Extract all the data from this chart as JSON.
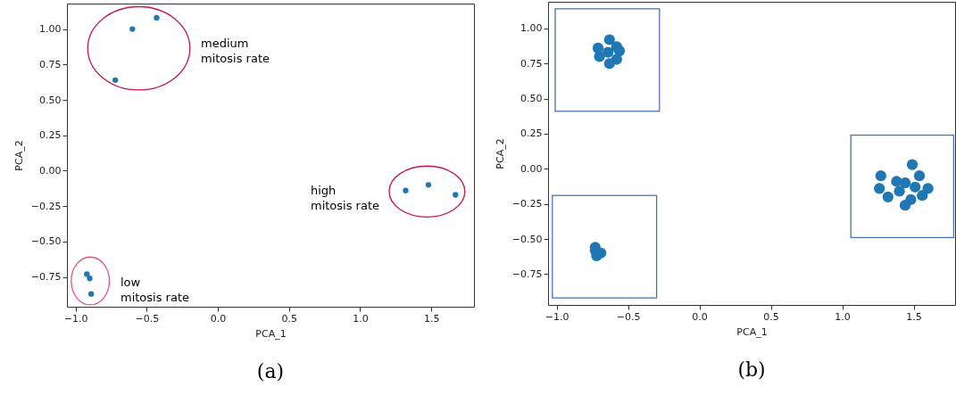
{
  "chart_data": [
    {
      "type": "scatter",
      "xlabel": "PCA_1",
      "ylabel": "PCA_2",
      "xlim": [
        -1.06,
        1.8
      ],
      "ylim": [
        -0.96,
        1.18
      ],
      "xticks": [
        {
          "value": -1,
          "label": "−1.0"
        },
        {
          "value": -0.5,
          "label": "−0.5"
        },
        {
          "value": 0,
          "label": "0.0"
        },
        {
          "value": 0.5,
          "label": "0.5"
        },
        {
          "value": 1,
          "label": "1.0"
        },
        {
          "value": 1.5,
          "label": "1.5"
        }
      ],
      "yticks": [
        {
          "value": -0.75,
          "label": "−0.75"
        },
        {
          "value": -0.5,
          "label": "−0.50"
        },
        {
          "value": -0.25,
          "label": "−0.25"
        },
        {
          "value": 0,
          "label": "0.00"
        },
        {
          "value": 0.25,
          "label": "0.25"
        },
        {
          "value": 0.5,
          "label": "0.50"
        },
        {
          "value": 0.75,
          "label": "0.75"
        },
        {
          "value": 1,
          "label": "1.00"
        }
      ],
      "grid": false,
      "marker": "circle",
      "series": [
        {
          "color": "#1f77b4",
          "x": [
            -0.43,
            -0.6,
            -0.72,
            1.32,
            1.48,
            1.67,
            -0.92,
            -0.9,
            -0.89
          ],
          "values": [
            1.08,
            1.0,
            0.64,
            -0.14,
            -0.1,
            -0.17,
            -0.73,
            -0.76,
            -0.87
          ]
        }
      ],
      "annotations": [
        "medium\nmitosis rate",
        "high\nmitosis rate",
        "low\nmitosis rate",
        "(a)"
      ]
    },
    {
      "type": "scatter",
      "xlabel": "PCA_1",
      "ylabel": "PCA_2",
      "xlim": [
        -1.06,
        1.79
      ],
      "ylim": [
        -0.97,
        1.19
      ],
      "xticks": [
        {
          "value": -1,
          "label": "−1.0"
        },
        {
          "value": -0.5,
          "label": "−0.5"
        },
        {
          "value": 0,
          "label": "0.0"
        },
        {
          "value": 0.5,
          "label": "0.5"
        },
        {
          "value": 1,
          "label": "1.0"
        },
        {
          "value": 1.5,
          "label": "1.5"
        }
      ],
      "yticks": [
        {
          "value": -0.75,
          "label": "−0.75"
        },
        {
          "value": -0.5,
          "label": "−0.50"
        },
        {
          "value": -0.25,
          "label": "−0.25"
        },
        {
          "value": 0,
          "label": "0.00"
        },
        {
          "value": 0.25,
          "label": "0.25"
        },
        {
          "value": 0.5,
          "label": "0.50"
        },
        {
          "value": 0.75,
          "label": "0.75"
        },
        {
          "value": 1,
          "label": "1.00"
        }
      ],
      "grid": false,
      "marker": "circle",
      "series": [
        {
          "color": "#1f77b4",
          "x": [
            -0.63,
            -0.71,
            -0.58,
            -0.56,
            -0.7,
            -0.58,
            -0.63,
            -0.64,
            -0.73,
            -0.72,
            -0.69,
            -0.73,
            1.49,
            1.27,
            1.54,
            1.38,
            1.26,
            1.6,
            1.32,
            1.56,
            1.44,
            1.48,
            1.44,
            1.4,
            1.51
          ],
          "values": [
            0.92,
            0.86,
            0.87,
            0.84,
            0.8,
            0.78,
            0.75,
            0.83,
            -0.56,
            -0.62,
            -0.6,
            -0.58,
            0.03,
            -0.05,
            -0.05,
            -0.09,
            -0.14,
            -0.14,
            -0.2,
            -0.19,
            -0.26,
            -0.22,
            -0.1,
            -0.16,
            -0.13
          ]
        }
      ],
      "annotations": [
        "(b)"
      ]
    }
  ]
}
